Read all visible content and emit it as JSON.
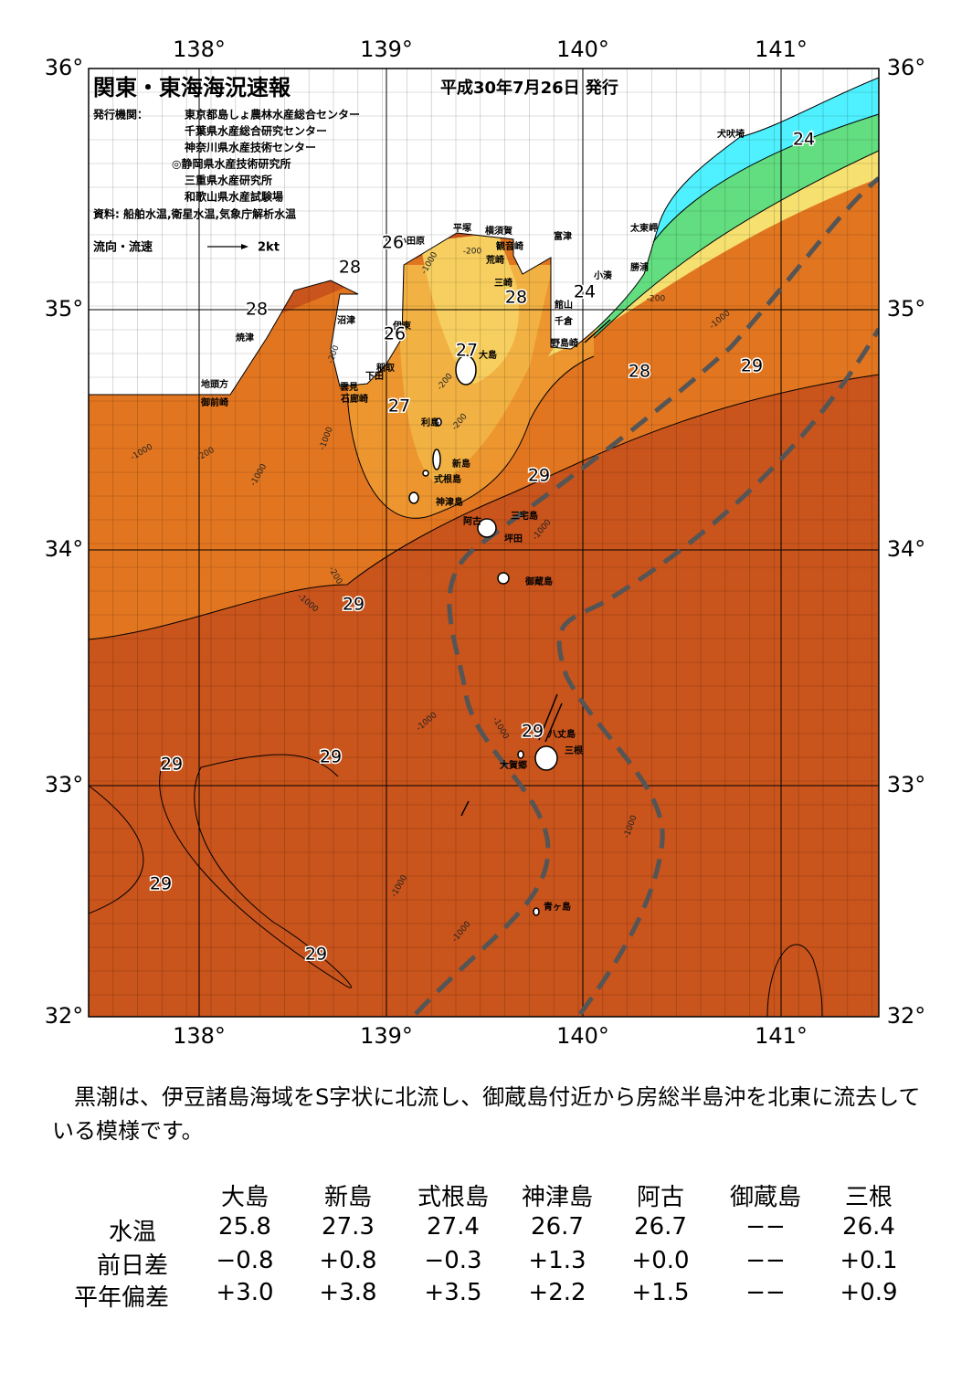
{
  "map": {
    "title": "関東・東海海況速報",
    "date": "平成30年7月26日 発行",
    "issuer_label": "発行機関：",
    "issuers": [
      "東京都島しょ農林水産総合センター",
      "千葉県水産総合研究センター",
      "神奈川県水産技術センター",
      "◎静岡県水産技術研究所",
      "三重県水産研究所",
      "和歌山県水産試験場"
    ],
    "source": "資料: 船舶水温,衛星水温,気象庁解析水温",
    "current_legend": "流向・流速",
    "current_scale": "2kt",
    "lon_labels": [
      "138°",
      "139°",
      "140°",
      "141°"
    ],
    "lat_labels": [
      "36°",
      "35°",
      "34°",
      "33°",
      "32°"
    ],
    "places": [
      "犬吠埼",
      "太東岬",
      "勝浦",
      "小湊",
      "館山",
      "千倉",
      "野島崎",
      "富津",
      "平塚",
      "横須賀",
      "観音崎",
      "荒崎",
      "三崎",
      "小田原",
      "沼津",
      "伊東",
      "焼津",
      "稲取",
      "下田",
      "雲見",
      "石廊崎",
      "地頭方",
      "御前崎",
      "大島",
      "利島",
      "新島",
      "式根島",
      "神津島",
      "三宅島",
      "阿古",
      "坪田",
      "御蔵島",
      "八丈島",
      "三根",
      "大賀郷",
      "青ヶ島"
    ],
    "isotherm_labels": [
      "24",
      "24",
      "26",
      "26",
      "27",
      "27",
      "28",
      "28",
      "28",
      "28",
      "29",
      "29",
      "29",
      "29",
      "29",
      "29",
      "29",
      "29"
    ],
    "depth_labels": [
      "-1000",
      "-200",
      "-1000",
      "-1000",
      "-200",
      "-1000",
      "-1000",
      "-1000",
      "-1000",
      "-1000",
      "-1000",
      "-1000",
      "-1000",
      "-200",
      "-1000",
      "-200",
      "-200",
      "-200",
      "-200"
    ]
  },
  "summary": "黒潮は、伊豆諸島海域をS字状に北流し、御蔵島付近から房総半島沖を北東に流去している模様です。",
  "table": {
    "columns": [
      "大島",
      "新島",
      "式根島",
      "神津島",
      "阿古",
      "御蔵島",
      "三根"
    ],
    "rows": [
      {
        "label": "水温",
        "values": [
          "25.8",
          "27.3",
          "27.4",
          "26.7",
          "26.7",
          "−−",
          "26.4"
        ]
      },
      {
        "label": "前日差",
        "values": [
          "−0.8",
          "+0.8",
          "−0.3",
          "+1.3",
          "+0.0",
          "−−",
          "+0.1"
        ]
      },
      {
        "label": "平年偏差",
        "values": [
          "+3.0",
          "+3.8",
          "+3.5",
          "+2.2",
          "+1.5",
          "−−",
          "+0.9"
        ]
      }
    ]
  }
}
